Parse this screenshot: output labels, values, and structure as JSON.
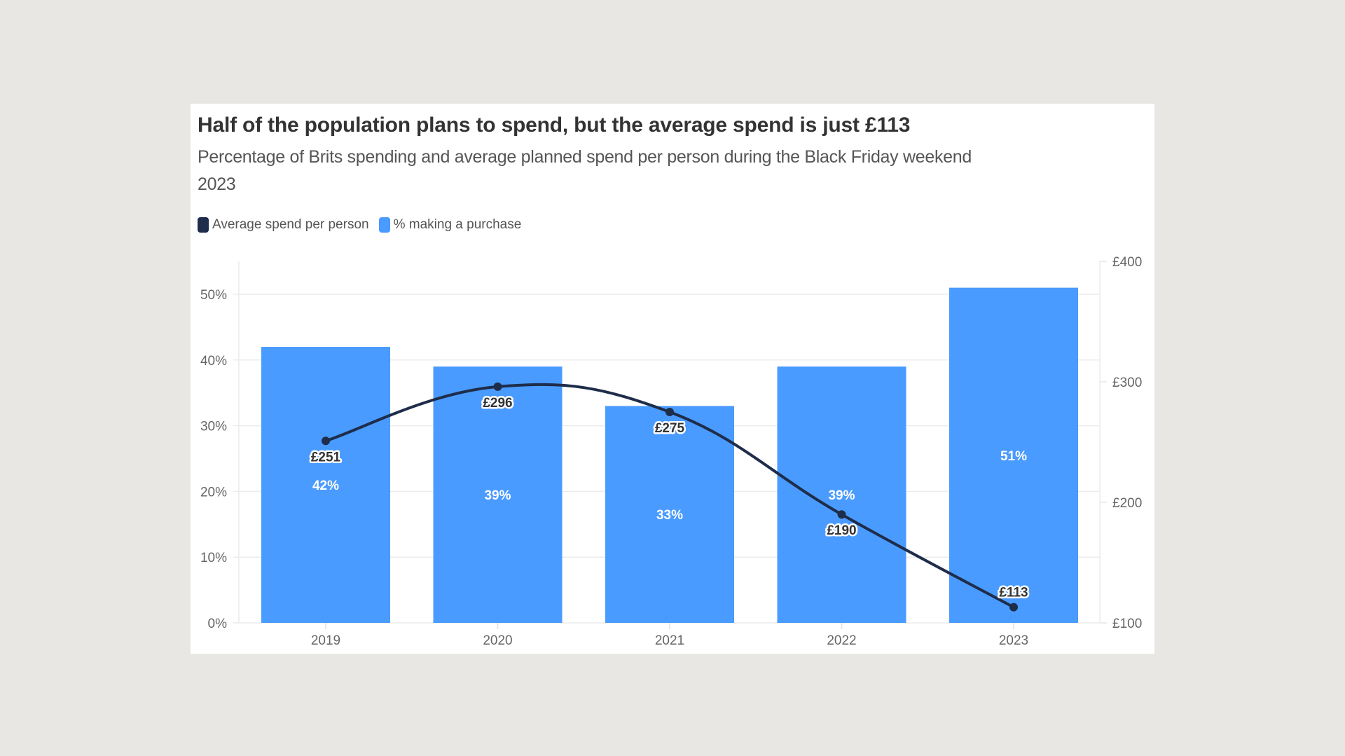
{
  "chart_data": {
    "type": "bar",
    "title": "Half of the population plans to spend, but the average spend is just £113",
    "subtitle": "Percentage of Brits spending and average planned spend per person during the Black Friday weekend 2023",
    "categories": [
      "2019",
      "2020",
      "2021",
      "2022",
      "2023"
    ],
    "series": [
      {
        "name": "% making a purchase",
        "type": "bar",
        "axis": "left",
        "values": [
          42,
          39,
          33,
          39,
          51
        ],
        "labels": [
          "42%",
          "39%",
          "33%",
          "39%",
          "51%"
        ],
        "color": "#4a9bff"
      },
      {
        "name": "Average spend per person",
        "type": "line",
        "axis": "right",
        "values": [
          251,
          296,
          275,
          190,
          113
        ],
        "labels": [
          "£251",
          "£296",
          "£275",
          "£190",
          "£113"
        ],
        "color": "#1e2d4a"
      }
    ],
    "legend": {
      "position": "top-left",
      "items": [
        {
          "label": "Average spend per person",
          "color": "#1e2d4a"
        },
        {
          "label": "% making a purchase",
          "color": "#4a9bff"
        }
      ]
    },
    "y_left": {
      "ylim": [
        0,
        55
      ],
      "ticks": [
        0,
        10,
        20,
        30,
        40,
        50
      ],
      "tick_labels": [
        "0%",
        "10%",
        "20%",
        "30%",
        "40%",
        "50%"
      ]
    },
    "y_right": {
      "ylim": [
        100,
        400
      ],
      "ticks": [
        100,
        200,
        300,
        400
      ],
      "tick_labels": [
        "£100",
        "£200",
        "£300",
        "£400"
      ]
    },
    "grid": true,
    "xlabel": "",
    "ylabel": ""
  }
}
